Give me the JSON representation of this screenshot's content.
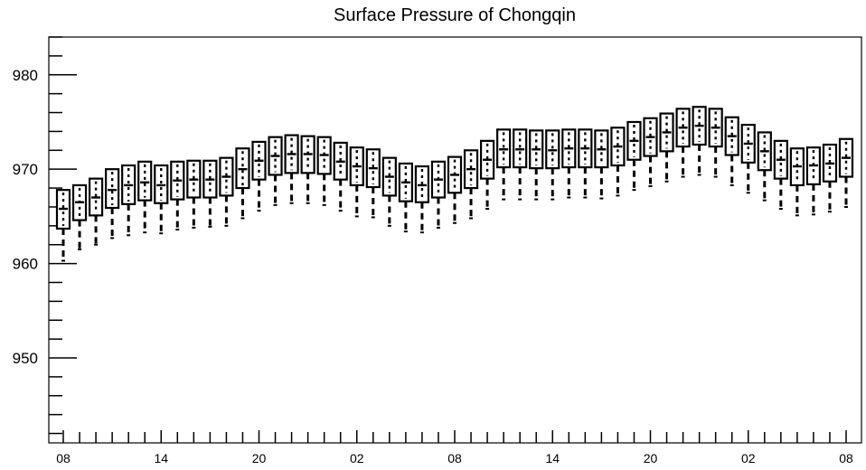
{
  "chart_data": {
    "type": "boxplot",
    "title": "Surface Pressure of Chongqin",
    "xlabel": "",
    "ylabel": "",
    "ylim": [
      941,
      984
    ],
    "yticks": [
      950,
      960,
      970,
      980
    ],
    "grid": false,
    "x_tick_labels": [
      "08",
      "14",
      "20",
      "02",
      "08",
      "14",
      "20",
      "02",
      "08"
    ],
    "x_tick_every": 6,
    "series": [
      {
        "boxes": [
          {
            "x": 0,
            "whisker_low": 960.3,
            "q1": 963.7,
            "median": 965.8,
            "q3": 967.8,
            "whisker_high": 967.8
          },
          {
            "x": 1,
            "whisker_low": 961.5,
            "q1": 964.6,
            "median": 966.5,
            "q3": 968.3,
            "whisker_high": 968.3
          },
          {
            "x": 2,
            "whisker_low": 962.0,
            "q1": 965.1,
            "median": 967.0,
            "q3": 969.0,
            "whisker_high": 969.0
          },
          {
            "x": 3,
            "whisker_low": 962.7,
            "q1": 965.9,
            "median": 967.8,
            "q3": 970.0,
            "whisker_high": 970.0
          },
          {
            "x": 4,
            "whisker_low": 963.0,
            "q1": 966.3,
            "median": 968.3,
            "q3": 970.4,
            "whisker_high": 970.4
          },
          {
            "x": 5,
            "whisker_low": 963.3,
            "q1": 966.7,
            "median": 968.6,
            "q3": 970.8,
            "whisker_high": 970.8
          },
          {
            "x": 6,
            "whisker_low": 963.2,
            "q1": 966.4,
            "median": 968.3,
            "q3": 970.4,
            "whisker_high": 970.4
          },
          {
            "x": 7,
            "whisker_low": 963.6,
            "q1": 966.8,
            "median": 968.8,
            "q3": 970.8,
            "whisker_high": 970.8
          },
          {
            "x": 8,
            "whisker_low": 963.8,
            "q1": 967.0,
            "median": 968.9,
            "q3": 970.9,
            "whisker_high": 970.9
          },
          {
            "x": 9,
            "whisker_low": 963.9,
            "q1": 967.0,
            "median": 968.9,
            "q3": 970.9,
            "whisker_high": 970.9
          },
          {
            "x": 10,
            "whisker_low": 964.0,
            "q1": 967.2,
            "median": 969.2,
            "q3": 971.2,
            "whisker_high": 971.2
          },
          {
            "x": 11,
            "whisker_low": 964.8,
            "q1": 968.0,
            "median": 970.0,
            "q3": 972.2,
            "whisker_high": 972.2
          },
          {
            "x": 12,
            "whisker_low": 965.6,
            "q1": 968.9,
            "median": 970.9,
            "q3": 972.9,
            "whisker_high": 972.9
          },
          {
            "x": 13,
            "whisker_low": 966.2,
            "q1": 969.4,
            "median": 971.4,
            "q3": 973.4,
            "whisker_high": 973.4
          },
          {
            "x": 14,
            "whisker_low": 966.4,
            "q1": 969.6,
            "median": 971.6,
            "q3": 973.6,
            "whisker_high": 973.6
          },
          {
            "x": 15,
            "whisker_low": 966.4,
            "q1": 969.6,
            "median": 971.6,
            "q3": 973.5,
            "whisker_high": 973.5
          },
          {
            "x": 16,
            "whisker_low": 966.2,
            "q1": 969.5,
            "median": 971.5,
            "q3": 973.4,
            "whisker_high": 973.4
          },
          {
            "x": 17,
            "whisker_low": 965.6,
            "q1": 968.9,
            "median": 970.8,
            "q3": 972.8,
            "whisker_high": 972.8
          },
          {
            "x": 18,
            "whisker_low": 965.0,
            "q1": 968.3,
            "median": 970.3,
            "q3": 972.3,
            "whisker_high": 972.3
          },
          {
            "x": 19,
            "whisker_low": 964.9,
            "q1": 968.1,
            "median": 970.1,
            "q3": 972.1,
            "whisker_high": 972.1
          },
          {
            "x": 20,
            "whisker_low": 964.0,
            "q1": 967.2,
            "median": 969.2,
            "q3": 971.2,
            "whisker_high": 971.2
          },
          {
            "x": 21,
            "whisker_low": 963.4,
            "q1": 966.6,
            "median": 968.6,
            "q3": 970.6,
            "whisker_high": 970.6
          },
          {
            "x": 22,
            "whisker_low": 963.3,
            "q1": 966.5,
            "median": 968.3,
            "q3": 970.3,
            "whisker_high": 970.3
          },
          {
            "x": 23,
            "whisker_low": 963.8,
            "q1": 967.0,
            "median": 968.9,
            "q3": 970.8,
            "whisker_high": 970.8
          },
          {
            "x": 24,
            "whisker_low": 964.3,
            "q1": 967.5,
            "median": 969.4,
            "q3": 971.3,
            "whisker_high": 971.3
          },
          {
            "x": 25,
            "whisker_low": 964.8,
            "q1": 968.0,
            "median": 970.0,
            "q3": 972.0,
            "whisker_high": 972.0
          },
          {
            "x": 26,
            "whisker_low": 965.8,
            "q1": 969.0,
            "median": 971.0,
            "q3": 973.0,
            "whisker_high": 973.0
          },
          {
            "x": 27,
            "whisker_low": 966.8,
            "q1": 970.2,
            "median": 972.1,
            "q3": 974.2,
            "whisker_high": 974.2
          },
          {
            "x": 28,
            "whisker_low": 966.8,
            "q1": 970.2,
            "median": 972.1,
            "q3": 974.2,
            "whisker_high": 974.2
          },
          {
            "x": 29,
            "whisker_low": 966.8,
            "q1": 970.1,
            "median": 972.1,
            "q3": 974.1,
            "whisker_high": 974.1
          },
          {
            "x": 30,
            "whisker_low": 966.8,
            "q1": 970.1,
            "median": 972.0,
            "q3": 974.1,
            "whisker_high": 974.1
          },
          {
            "x": 31,
            "whisker_low": 967.0,
            "q1": 970.2,
            "median": 972.2,
            "q3": 974.2,
            "whisker_high": 974.2
          },
          {
            "x": 32,
            "whisker_low": 967.0,
            "q1": 970.2,
            "median": 972.2,
            "q3": 974.2,
            "whisker_high": 974.2
          },
          {
            "x": 33,
            "whisker_low": 966.9,
            "q1": 970.2,
            "median": 972.1,
            "q3": 974.1,
            "whisker_high": 974.1
          },
          {
            "x": 34,
            "whisker_low": 967.2,
            "q1": 970.4,
            "median": 972.4,
            "q3": 974.4,
            "whisker_high": 974.4
          },
          {
            "x": 35,
            "whisker_low": 967.8,
            "q1": 971.0,
            "median": 973.0,
            "q3": 975.0,
            "whisker_high": 975.0
          },
          {
            "x": 36,
            "whisker_low": 968.2,
            "q1": 971.4,
            "median": 973.4,
            "q3": 975.4,
            "whisker_high": 975.4
          },
          {
            "x": 37,
            "whisker_low": 968.7,
            "q1": 971.9,
            "median": 973.9,
            "q3": 975.9,
            "whisker_high": 975.9
          },
          {
            "x": 38,
            "whisker_low": 969.2,
            "q1": 972.4,
            "median": 974.4,
            "q3": 976.4,
            "whisker_high": 976.4
          },
          {
            "x": 39,
            "whisker_low": 969.4,
            "q1": 972.6,
            "median": 974.6,
            "q3": 976.6,
            "whisker_high": 976.6
          },
          {
            "x": 40,
            "whisker_low": 969.2,
            "q1": 972.4,
            "median": 974.4,
            "q3": 976.4,
            "whisker_high": 976.4
          },
          {
            "x": 41,
            "whisker_low": 968.3,
            "q1": 971.5,
            "median": 973.5,
            "q3": 975.5,
            "whisker_high": 975.5
          },
          {
            "x": 42,
            "whisker_low": 967.5,
            "q1": 970.7,
            "median": 972.7,
            "q3": 974.7,
            "whisker_high": 974.7
          },
          {
            "x": 43,
            "whisker_low": 966.7,
            "q1": 969.9,
            "median": 971.9,
            "q3": 973.9,
            "whisker_high": 973.9
          },
          {
            "x": 44,
            "whisker_low": 965.8,
            "q1": 969.0,
            "median": 971.0,
            "q3": 973.0,
            "whisker_high": 973.0
          },
          {
            "x": 45,
            "whisker_low": 965.1,
            "q1": 968.3,
            "median": 970.3,
            "q3": 972.2,
            "whisker_high": 972.2
          },
          {
            "x": 46,
            "whisker_low": 965.2,
            "q1": 968.4,
            "median": 970.4,
            "q3": 972.3,
            "whisker_high": 972.3
          },
          {
            "x": 47,
            "whisker_low": 965.5,
            "q1": 968.7,
            "median": 970.6,
            "q3": 972.6,
            "whisker_high": 972.6
          },
          {
            "x": 48,
            "whisker_low": 966.0,
            "q1": 969.2,
            "median": 971.2,
            "q3": 973.2,
            "whisker_high": 973.2
          }
        ]
      }
    ]
  }
}
